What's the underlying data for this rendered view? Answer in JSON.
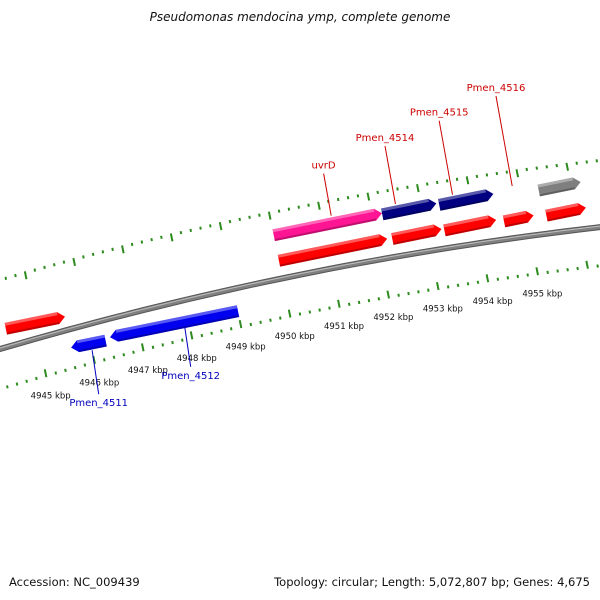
{
  "title": "Pseudomonas mendocina ymp, complete genome",
  "footer": {
    "accession": "Accession: NC_009439",
    "summary": "Topology: circular; Length: 5,072,807 bp; Genes: 4,675"
  },
  "colors": {
    "forward_gene": "#ff0000",
    "reverse_gene": "#0000ee",
    "highlight_gene": "#ff1493",
    "dark_gene": "#000080",
    "pseudo_gene": "#7f7f7f",
    "backbone": "#808080",
    "tick": "#2e8b1f",
    "forward_label": "#cc0000",
    "reverse_label": "#0000bb"
  },
  "kbp_ticks": [
    {
      "kbp": 4945,
      "label": "4945 kbp"
    },
    {
      "kbp": 4946,
      "label": "4946 kbp"
    },
    {
      "kbp": 4947,
      "label": "4947 kbp"
    },
    {
      "kbp": 4948,
      "label": "4948 kbp"
    },
    {
      "kbp": 4949,
      "label": "4949 kbp"
    },
    {
      "kbp": 4950,
      "label": "4950 kbp"
    },
    {
      "kbp": 4951,
      "label": "4951 kbp"
    },
    {
      "kbp": 4952,
      "label": "4952 kbp"
    },
    {
      "kbp": 4953,
      "label": "4953 kbp"
    },
    {
      "kbp": 4954,
      "label": "4954 kbp"
    },
    {
      "kbp": 4955,
      "label": "4955 kbp"
    }
  ],
  "genes": [
    {
      "name": "",
      "strand": "forward",
      "track": "inner",
      "start_kbp": 4944.4,
      "end_kbp": 4945.6,
      "color": "forward_gene"
    },
    {
      "name": "",
      "strand": "reverse",
      "track": "inner",
      "start_kbp": 4945.6,
      "end_kbp": 4946.3,
      "color": "reverse_gene"
    },
    {
      "name": "",
      "strand": "reverse",
      "track": "inner",
      "start_kbp": 4946.4,
      "end_kbp": 4949.0,
      "color": "reverse_gene"
    },
    {
      "name": "",
      "strand": "forward",
      "track": "inner",
      "start_kbp": 4950.0,
      "end_kbp": 4952.2,
      "color": "forward_gene"
    },
    {
      "name": "",
      "strand": "forward",
      "track": "inner",
      "start_kbp": 4952.3,
      "end_kbp": 4953.3,
      "color": "forward_gene"
    },
    {
      "name": "",
      "strand": "forward",
      "track": "inner",
      "start_kbp": 4953.35,
      "end_kbp": 4954.4,
      "color": "forward_gene"
    },
    {
      "name": "",
      "strand": "forward",
      "track": "inner",
      "start_kbp": 4954.55,
      "end_kbp": 4955.15,
      "color": "forward_gene"
    },
    {
      "name": "",
      "strand": "forward",
      "track": "inner",
      "start_kbp": 4955.4,
      "end_kbp": 4956.2,
      "color": "forward_gene"
    },
    {
      "name": "",
      "strand": "forward",
      "track": "outer",
      "start_kbp": 4950.0,
      "end_kbp": 4952.2,
      "color": "highlight_gene"
    },
    {
      "name": "",
      "strand": "forward",
      "track": "outer",
      "start_kbp": 4952.2,
      "end_kbp": 4953.3,
      "color": "dark_gene"
    },
    {
      "name": "",
      "strand": "forward",
      "track": "outer",
      "start_kbp": 4953.35,
      "end_kbp": 4954.45,
      "color": "dark_gene"
    },
    {
      "name": "",
      "strand": "forward",
      "track": "outer",
      "start_kbp": 4955.35,
      "end_kbp": 4956.2,
      "color": "pseudo_gene"
    }
  ],
  "gene_labels": [
    {
      "name": "uvrD",
      "strand": "forward",
      "anchor_kbp": 4951.2,
      "color": "forward_label"
    },
    {
      "name": "Pmen_4514",
      "strand": "forward",
      "anchor_kbp": 4952.5,
      "color": "forward_label"
    },
    {
      "name": "Pmen_4515",
      "strand": "forward",
      "anchor_kbp": 4953.65,
      "color": "forward_label"
    },
    {
      "name": "Pmen_4516",
      "strand": "forward",
      "anchor_kbp": 4954.85,
      "color": "forward_label"
    },
    {
      "name": "Pmen_4511",
      "strand": "reverse",
      "anchor_kbp": 4946.0,
      "color": "reverse_label"
    },
    {
      "name": "Pmen_4512",
      "strand": "reverse",
      "anchor_kbp": 4947.9,
      "color": "reverse_label"
    }
  ]
}
